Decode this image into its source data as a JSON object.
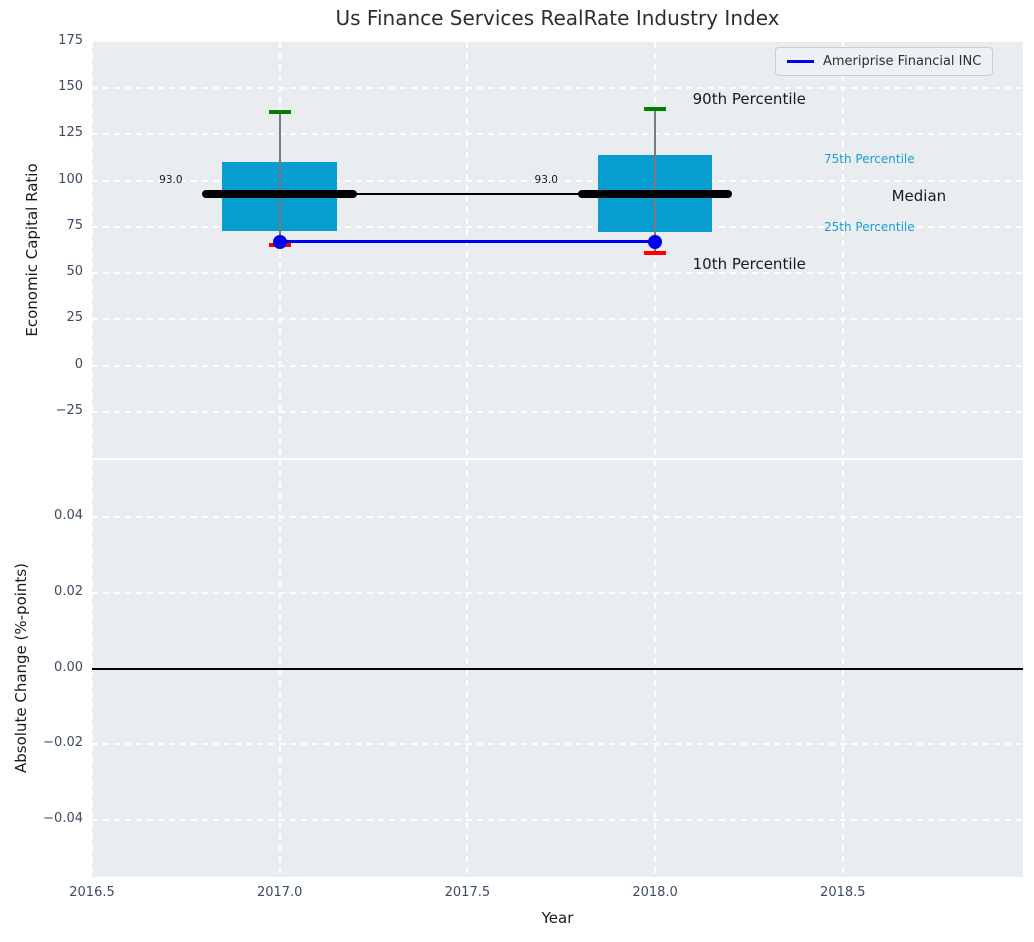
{
  "figure": {
    "title": "Us Finance Services RealRate Industry Index",
    "xlabel": "Year",
    "legend": {
      "label": "Ameriprise Financial INC"
    },
    "colors": {
      "axes_background": "#e9edf0",
      "grid": "#ffffff",
      "box_fill": "#089dd1",
      "median_line": "#000000",
      "company_blue": "#0000ee",
      "p90_cap_green": "#008000",
      "p10_cap_red": "#fe0000",
      "whisker_gray": "#7a7a7a",
      "tick_label": "#3b4c61",
      "percentile_label_cyan": "#189ed3",
      "annotation_black": "#1a1a1a"
    }
  },
  "chart_data": [
    {
      "type": "boxplot",
      "title": "Us Finance Services RealRate Industry Index",
      "ylabel": "Economic Capital Ratio",
      "xlabel": "Year",
      "xlim": [
        2016.5,
        2018.98
      ],
      "ylim": [
        -50,
        175
      ],
      "grid": "dashed-white",
      "legend_position": "upper right",
      "xticks": {
        "values": [
          2016.5,
          2017.0,
          2017.5,
          2018.0,
          2018.5
        ],
        "labels": [
          "2016.5",
          "2017.0",
          "2017.5",
          "2018.0",
          "2018.5"
        ]
      },
      "yticks": {
        "values": [
          175,
          150,
          125,
          100,
          75,
          50,
          25,
          0,
          -25
        ],
        "labels": [
          "175",
          "150",
          "125",
          "100",
          "75",
          "50",
          "25",
          "0",
          "−25"
        ]
      },
      "groups": [
        {
          "year": 2017,
          "p90": 137,
          "p75": 110,
          "median": 93.0,
          "p25": 73,
          "p10": 65,
          "median_label": "93.0"
        },
        {
          "year": 2018,
          "p90": 138.5,
          "p75": 114,
          "median": 93.0,
          "p25": 72,
          "p10": 61,
          "median_label": "93.0"
        }
      ],
      "series": [
        {
          "name": "Ameriprise Financial INC",
          "x": [
            2017,
            2018
          ],
          "y": [
            67,
            67
          ]
        }
      ],
      "median_labels": [
        {
          "x": 2016.71,
          "y": 100.5,
          "text": "93.0"
        },
        {
          "x": 2017.71,
          "y": 100.5,
          "text": "93.0"
        }
      ],
      "annotations": [
        {
          "text": "90th Percentile",
          "x": 2018.1,
          "y": 144,
          "color": "#1a1a1a",
          "size": 15,
          "anchor": "left"
        },
        {
          "text": "10th Percentile",
          "x": 2018.1,
          "y": 55,
          "color": "#1a1a1a",
          "size": 15,
          "anchor": "left"
        },
        {
          "text": "75th Percentile",
          "x": 2018.45,
          "y": 111.5,
          "color": "#189ed3",
          "size": 12,
          "anchor": "left"
        },
        {
          "text": "Median",
          "x": 2018.63,
          "y": 91.5,
          "color": "#1a1a1a",
          "size": 15,
          "anchor": "left"
        },
        {
          "text": "25th Percentile",
          "x": 2018.45,
          "y": 75,
          "color": "#189ed3",
          "size": 12,
          "anchor": "left"
        }
      ]
    },
    {
      "type": "line",
      "ylabel": "Absolute Change (%-points)",
      "xlabel": "Year",
      "xlim": [
        2016.5,
        2018.98
      ],
      "ylim": [
        -0.055,
        0.055
      ],
      "grid": "dashed-white",
      "xticks": {
        "values": [
          2016.5,
          2017.0,
          2017.5,
          2018.0,
          2018.5
        ],
        "labels": [
          "2016.5",
          "2017.0",
          "2017.5",
          "2018.0",
          "2018.5"
        ]
      },
      "yticks": {
        "values": [
          0.04,
          0.02,
          0.0,
          -0.02,
          -0.04
        ],
        "labels": [
          "0.04",
          "0.02",
          "0.00",
          "−0.02",
          "−0.04"
        ]
      },
      "zero_line": 0.0,
      "series": []
    }
  ]
}
